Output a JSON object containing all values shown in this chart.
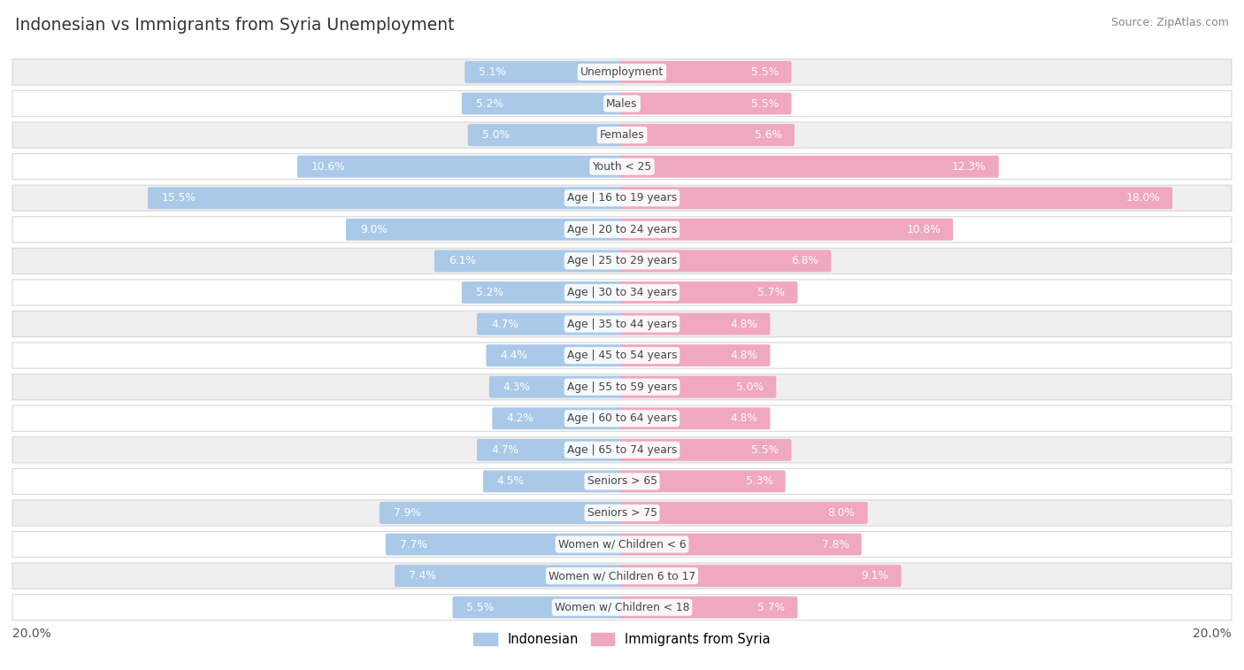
{
  "title": "Indonesian vs Immigrants from Syria Unemployment",
  "source": "Source: ZipAtlas.com",
  "categories": [
    "Unemployment",
    "Males",
    "Females",
    "Youth < 25",
    "Age | 16 to 19 years",
    "Age | 20 to 24 years",
    "Age | 25 to 29 years",
    "Age | 30 to 34 years",
    "Age | 35 to 44 years",
    "Age | 45 to 54 years",
    "Age | 55 to 59 years",
    "Age | 60 to 64 years",
    "Age | 65 to 74 years",
    "Seniors > 65",
    "Seniors > 75",
    "Women w/ Children < 6",
    "Women w/ Children 6 to 17",
    "Women w/ Children < 18"
  ],
  "indonesian": [
    5.1,
    5.2,
    5.0,
    10.6,
    15.5,
    9.0,
    6.1,
    5.2,
    4.7,
    4.4,
    4.3,
    4.2,
    4.7,
    4.5,
    7.9,
    7.7,
    7.4,
    5.5
  ],
  "syria": [
    5.5,
    5.5,
    5.6,
    12.3,
    18.0,
    10.8,
    6.8,
    5.7,
    4.8,
    4.8,
    5.0,
    4.8,
    5.5,
    5.3,
    8.0,
    7.8,
    9.1,
    5.7
  ],
  "max_val": 20.0,
  "blue_color": "#aac9e8",
  "pink_color": "#f0a8bf",
  "blue_highlight": "#6aaad4",
  "pink_highlight": "#e8708a",
  "row_colors": [
    "#efefef",
    "#ffffff"
  ],
  "text_dark": "#555555",
  "text_white": "#ffffff",
  "legend_blue": "Indonesian",
  "legend_pink": "Immigrants from Syria",
  "axis_label": "20.0%"
}
